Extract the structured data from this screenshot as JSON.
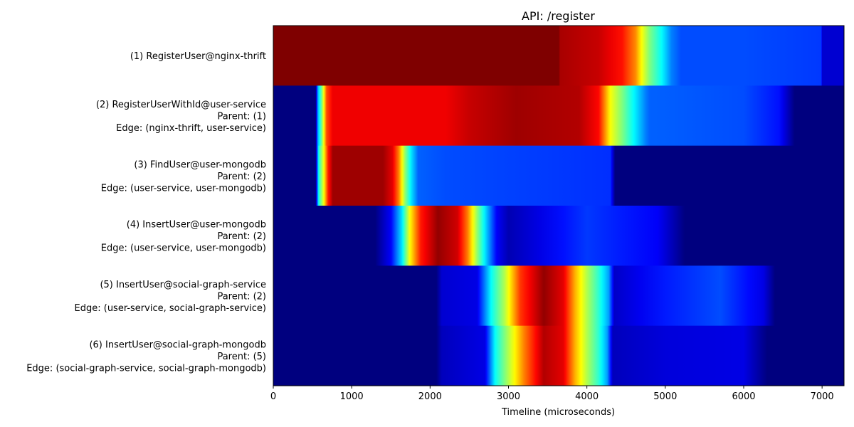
{
  "chart_data": {
    "type": "heatmap",
    "title": "API: /register",
    "xlabel": "Timeline (microseconds)",
    "ylabel": "",
    "xlim": [
      0,
      7280
    ],
    "xticks": [
      0,
      1000,
      2000,
      3000,
      4000,
      5000,
      6000,
      7000
    ],
    "grid": false,
    "colormap": "jet",
    "colormap_stops": [
      "#00007f",
      "#0000ff",
      "#007fff",
      "#00ffff",
      "#7fff7f",
      "#ffff00",
      "#ff7f00",
      "#ff0000",
      "#7f0000"
    ],
    "rows": [
      {
        "lines": [
          "(1) RegisterUser@nginx-thrift"
        ],
        "intensity_profile": [
          [
            0,
            1.0
          ],
          [
            3640,
            1.0
          ],
          [
            3660,
            0.96
          ],
          [
            4150,
            0.93
          ],
          [
            4450,
            0.86
          ],
          [
            4620,
            0.74
          ],
          [
            4700,
            0.62
          ],
          [
            4800,
            0.5
          ],
          [
            4950,
            0.38
          ],
          [
            5080,
            0.25
          ],
          [
            5200,
            0.2
          ],
          [
            6000,
            0.2
          ],
          [
            6990,
            0.18
          ],
          [
            7000,
            0.08
          ],
          [
            7280,
            0.08
          ]
        ]
      },
      {
        "lines": [
          "(2) RegisterUserWithId@user-service",
          "Parent: (1)",
          "Edge: (nginx-thrift, user-service)"
        ],
        "intensity_profile": [
          [
            0,
            0.0
          ],
          [
            540,
            0.0
          ],
          [
            570,
            0.3
          ],
          [
            620,
            0.5
          ],
          [
            680,
            0.8
          ],
          [
            760,
            0.89
          ],
          [
            2200,
            0.89
          ],
          [
            2500,
            0.93
          ],
          [
            3100,
            0.97
          ],
          [
            3900,
            0.95
          ],
          [
            4150,
            0.87
          ],
          [
            4300,
            0.62
          ],
          [
            4450,
            0.5
          ],
          [
            4600,
            0.37
          ],
          [
            4750,
            0.25
          ],
          [
            4800,
            0.22
          ],
          [
            6000,
            0.2
          ],
          [
            6450,
            0.14
          ],
          [
            6650,
            0.0
          ],
          [
            7280,
            0.0
          ]
        ]
      },
      {
        "lines": [
          "(3) FindUser@user-mongodb",
          "Parent: (2)",
          "Edge: (user-service, user-mongodb)"
        ],
        "intensity_profile": [
          [
            0,
            0.0
          ],
          [
            540,
            0.0
          ],
          [
            580,
            0.4
          ],
          [
            640,
            0.6
          ],
          [
            700,
            0.85
          ],
          [
            760,
            0.97
          ],
          [
            1400,
            0.97
          ],
          [
            1520,
            0.9
          ],
          [
            1600,
            0.75
          ],
          [
            1680,
            0.52
          ],
          [
            1760,
            0.35
          ],
          [
            1850,
            0.22
          ],
          [
            2200,
            0.2
          ],
          [
            4300,
            0.17
          ],
          [
            4360,
            0.0
          ],
          [
            7280,
            0.0
          ]
        ]
      },
      {
        "lines": [
          "(4) InsertUser@user-mongodb",
          "Parent: (2)",
          "Edge: (user-service, user-mongodb)"
        ],
        "intensity_profile": [
          [
            0,
            0.0
          ],
          [
            1300,
            0.0
          ],
          [
            1500,
            0.12
          ],
          [
            1640,
            0.35
          ],
          [
            1740,
            0.62
          ],
          [
            1880,
            0.85
          ],
          [
            2100,
            0.98
          ],
          [
            2350,
            0.92
          ],
          [
            2480,
            0.75
          ],
          [
            2600,
            0.52
          ],
          [
            2720,
            0.32
          ],
          [
            2850,
            0.12
          ],
          [
            3000,
            0.05
          ],
          [
            3400,
            0.1
          ],
          [
            4000,
            0.18
          ],
          [
            4900,
            0.12
          ],
          [
            5250,
            0.0
          ],
          [
            7280,
            0.0
          ]
        ]
      },
      {
        "lines": [
          "(5) InsertUser@social-graph-service",
          "Parent: (2)",
          "Edge: (user-service, social-graph-service)"
        ],
        "intensity_profile": [
          [
            0,
            0.0
          ],
          [
            2080,
            0.0
          ],
          [
            2150,
            0.08
          ],
          [
            2600,
            0.1
          ],
          [
            2780,
            0.38
          ],
          [
            2950,
            0.55
          ],
          [
            3150,
            0.82
          ],
          [
            3450,
            0.98
          ],
          [
            3700,
            0.9
          ],
          [
            3850,
            0.7
          ],
          [
            4000,
            0.55
          ],
          [
            4150,
            0.42
          ],
          [
            4280,
            0.28
          ],
          [
            4350,
            0.07
          ],
          [
            5000,
            0.15
          ],
          [
            5700,
            0.2
          ],
          [
            6250,
            0.1
          ],
          [
            6400,
            0.0
          ],
          [
            7280,
            0.0
          ]
        ]
      },
      {
        "lines": [
          "(6) InsertUser@social-graph-mongodb",
          "Parent: (5)",
          "Edge: (social-graph-service, social-graph-mongodb)"
        ],
        "intensity_profile": [
          [
            0,
            0.0
          ],
          [
            2080,
            0.0
          ],
          [
            2150,
            0.06
          ],
          [
            2700,
            0.1
          ],
          [
            2830,
            0.38
          ],
          [
            3000,
            0.55
          ],
          [
            3200,
            0.75
          ],
          [
            3450,
            0.95
          ],
          [
            3700,
            0.9
          ],
          [
            3850,
            0.7
          ],
          [
            4000,
            0.55
          ],
          [
            4150,
            0.42
          ],
          [
            4260,
            0.28
          ],
          [
            4330,
            0.06
          ],
          [
            5000,
            0.09
          ],
          [
            6000,
            0.1
          ],
          [
            6300,
            0.0
          ],
          [
            7280,
            0.0
          ]
        ]
      }
    ]
  }
}
